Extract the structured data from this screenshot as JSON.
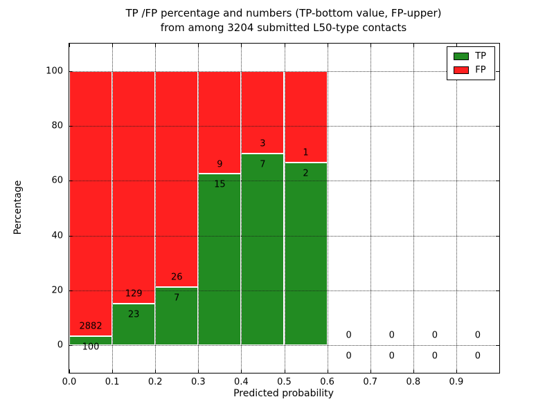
{
  "chart_data": {
    "type": "bar",
    "stacked": true,
    "title": "TP /FP percentage and numbers (TP-bottom value, FP-upper) from among 3204 submitted L50-type contacts",
    "title_lines": [
      "TP /FP percentage and numbers (TP-bottom value, FP-upper)",
      "from among 3204 submitted L50-type contacts"
    ],
    "total_contacts": 3204,
    "xlabel": "Predicted probability",
    "ylabel": "Percentage",
    "xlim": [
      0.0,
      1.0
    ],
    "ylim": [
      -10,
      110
    ],
    "x_tick_values": [
      0.0,
      0.1,
      0.2,
      0.3,
      0.4,
      0.5,
      0.6,
      0.7,
      0.8,
      0.9
    ],
    "x_tick_labels": [
      "0.0",
      "0.1",
      "0.2",
      "0.3",
      "0.4",
      "0.5",
      "0.6",
      "0.7",
      "0.8",
      "0.9"
    ],
    "y_tick_values": [
      0,
      20,
      40,
      60,
      80,
      100
    ],
    "grid": true,
    "grid_above_bars": true,
    "legend": {
      "position": "upper right",
      "entries": [
        {
          "label": "TP",
          "color": "#228B22"
        },
        {
          "label": "FP",
          "color": "#FF2020"
        }
      ]
    },
    "bins": [
      {
        "x_range": [
          0.0,
          0.1
        ],
        "tp_count": 100,
        "fp_count": 2882,
        "tp_pct": 3.35,
        "fp_pct": 96.65
      },
      {
        "x_range": [
          0.1,
          0.2
        ],
        "tp_count": 23,
        "fp_count": 129,
        "tp_pct": 15.13,
        "fp_pct": 84.87
      },
      {
        "x_range": [
          0.2,
          0.3
        ],
        "tp_count": 7,
        "fp_count": 26,
        "tp_pct": 21.21,
        "fp_pct": 78.79
      },
      {
        "x_range": [
          0.3,
          0.4
        ],
        "tp_count": 15,
        "fp_count": 9,
        "tp_pct": 62.5,
        "fp_pct": 37.5
      },
      {
        "x_range": [
          0.4,
          0.5
        ],
        "tp_count": 7,
        "fp_count": 3,
        "tp_pct": 70.0,
        "fp_pct": 30.0
      },
      {
        "x_range": [
          0.5,
          0.6
        ],
        "tp_count": 2,
        "fp_count": 1,
        "tp_pct": 66.67,
        "fp_pct": 33.33
      },
      {
        "x_range": [
          0.6,
          0.7
        ],
        "tp_count": 0,
        "fp_count": 0,
        "tp_pct": 0,
        "fp_pct": 0
      },
      {
        "x_range": [
          0.7,
          0.8
        ],
        "tp_count": 0,
        "fp_count": 0,
        "tp_pct": 0,
        "fp_pct": 0
      },
      {
        "x_range": [
          0.8,
          0.9
        ],
        "tp_count": 0,
        "fp_count": 0,
        "tp_pct": 0,
        "fp_pct": 0
      },
      {
        "x_range": [
          0.9,
          1.0
        ],
        "tp_count": 0,
        "fp_count": 0,
        "tp_pct": 0,
        "fp_pct": 0
      }
    ],
    "colors": {
      "tp": "#228B22",
      "fp": "#FF2020",
      "bar_edge": "#FFFFFF",
      "grid": "#1A1A1A",
      "axis": "#000000",
      "background": "#FFFFFF"
    }
  }
}
